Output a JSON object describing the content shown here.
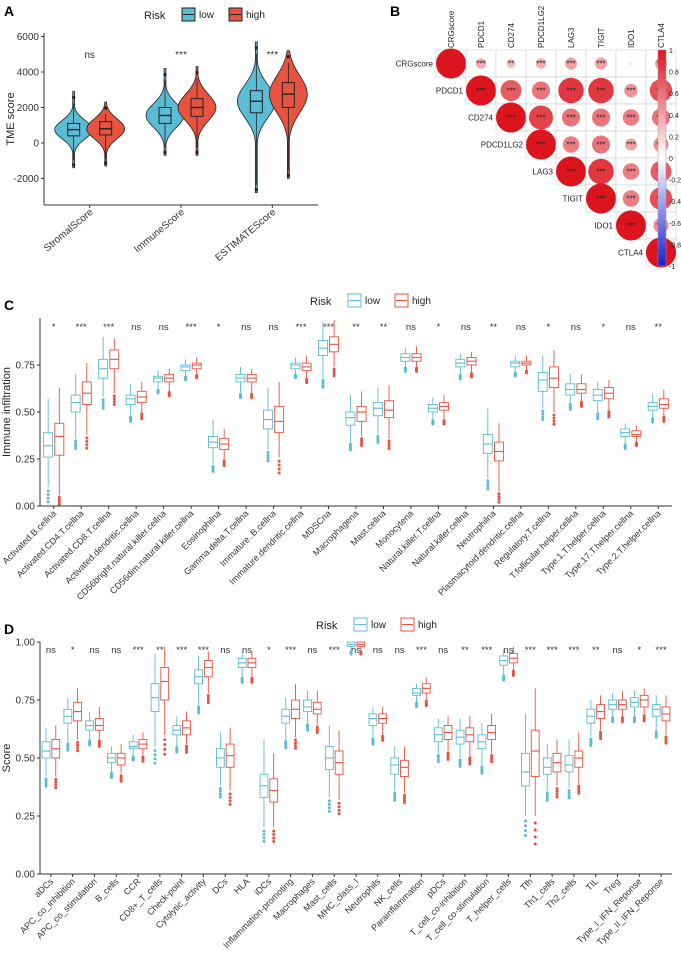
{
  "colors": {
    "low": "#5bbcd6",
    "high": "#e8533f",
    "lowDark": "#2a9fc0",
    "highDark": "#d23f2b",
    "axis": "#333333",
    "grid": "#dddddd"
  },
  "chart_data": [
    {
      "id": "A",
      "type": "violin",
      "panel_label": "A",
      "legend": {
        "title": "Risk",
        "entries": [
          "low",
          "high"
        ]
      },
      "ylabel": "TME score",
      "ylim": [
        -3500,
        6200
      ],
      "yticks": [
        -2000,
        0,
        2000,
        4000,
        6000
      ],
      "categories": [
        "StromalScore",
        "ImmuneScore",
        "ESTIMATEScore"
      ],
      "significance": [
        "ns",
        "***",
        "***"
      ],
      "series": [
        {
          "name": "low",
          "median": [
            750,
            1550,
            2350
          ],
          "q1": [
            400,
            1100,
            1700
          ],
          "q3": [
            1100,
            2000,
            2950
          ],
          "min": [
            -1400,
            -700,
            -2800
          ],
          "max": [
            2900,
            4200,
            5700
          ]
        },
        {
          "name": "high",
          "median": [
            800,
            2000,
            2750
          ],
          "q1": [
            450,
            1500,
            2000
          ],
          "q3": [
            1200,
            2500,
            3400
          ],
          "min": [
            -1300,
            -700,
            -2000
          ],
          "max": [
            2300,
            4300,
            5200
          ]
        }
      ]
    },
    {
      "id": "B",
      "type": "correlation-matrix",
      "panel_label": "B",
      "variables": [
        "CRGscore",
        "PDCD1",
        "CD274",
        "PDCD1LG2",
        "LAG3",
        "TIGIT",
        "IDO1",
        "CTLA4"
      ],
      "colorbar_ticks": [
        "1",
        "0.8",
        "0.6",
        "0.4",
        "0.2",
        "0",
        "-0.2",
        "-0.4",
        "-0.6",
        "-0.8",
        "-1"
      ],
      "cells": [
        [
          "",
          "***",
          "**",
          "***",
          "***",
          "***",
          "",
          "***"
        ],
        [
          "",
          "***",
          "***",
          "***",
          "***",
          "***",
          "***",
          "***"
        ],
        [
          "",
          "",
          "***",
          "***",
          "***",
          "***",
          "***",
          "***"
        ],
        [
          "",
          "",
          "",
          "***",
          "***",
          "***",
          "***",
          "***"
        ],
        [
          "",
          "",
          "",
          "",
          "***",
          "***",
          "***",
          "***"
        ],
        [
          "",
          "",
          "",
          "",
          "",
          "***",
          "***",
          "***"
        ],
        [
          "",
          "",
          "",
          "",
          "",
          "",
          "***",
          "***"
        ],
        [
          "",
          "",
          "",
          "",
          "",
          "",
          "",
          "***"
        ]
      ],
      "values": [
        [
          1,
          0.35,
          0.3,
          0.35,
          0.4,
          0.4,
          0.1,
          0.4
        ],
        [
          0,
          1,
          0.7,
          0.6,
          0.85,
          0.85,
          0.45,
          0.75
        ],
        [
          0,
          0,
          1,
          0.8,
          0.6,
          0.6,
          0.55,
          0.6
        ],
        [
          0,
          0,
          0,
          1,
          0.55,
          0.6,
          0.4,
          0.5
        ],
        [
          0,
          0,
          0,
          0,
          1,
          0.85,
          0.55,
          0.7
        ],
        [
          0,
          0,
          0,
          0,
          0,
          1,
          0.55,
          0.75
        ],
        [
          0,
          0,
          0,
          0,
          0,
          0,
          1,
          0.5
        ],
        [
          0,
          0,
          0,
          0,
          0,
          0,
          0,
          1
        ]
      ]
    },
    {
      "id": "C",
      "type": "boxplot",
      "panel_label": "C",
      "legend": {
        "title": "Risk",
        "entries": [
          "low",
          "high"
        ]
      },
      "ylabel": "Immune infiltration",
      "ylim": [
        0,
        1.0
      ],
      "yticks": [
        0.0,
        0.25,
        0.5,
        0.75
      ],
      "ytick_labels": [
        "0.00",
        "0.25",
        "0.50",
        "0.75"
      ],
      "categories": [
        "Activated.B.cellna",
        "Activated.CD4.T.cellna",
        "Activated.CD8.T.cellna",
        "Activated.dendritic.cellna",
        "CD56bright.natural.killer.cellna",
        "CD56dim.natural.killer.cellna",
        "Eosinophilna",
        "Gamma.delta.T.cellna",
        "Immature..B.cellna",
        "Immature.dendritic.cellna",
        "MDSCna",
        "Macrophagena",
        "Mast.cellna",
        "Monocytena",
        "Natural.killer.T.cellna",
        "Natural.killer.cellna",
        "Neutrophilna",
        "Plasmacytoid.dendritic.cellna",
        "Regulatory.T.cellna",
        "T.follicular.helper.cellna",
        "Type.1.T.helper.cellna",
        "Type.17.T.helper.cellna",
        "Type.2.T.helper.cellna"
      ],
      "significance": [
        "*",
        "***",
        "***",
        "ns",
        "ns",
        "***",
        "*",
        "ns",
        "ns",
        "***",
        "***",
        "**",
        "**",
        "ns",
        "*",
        "ns",
        "**",
        "ns",
        "*",
        "ns",
        "*",
        "ns",
        "**"
      ],
      "series": [
        {
          "name": "low",
          "median": [
            0.32,
            0.55,
            0.73,
            0.57,
            0.68,
            0.74,
            0.34,
            0.68,
            0.46,
            0.75,
            0.84,
            0.47,
            0.52,
            0.79,
            0.52,
            0.76,
            0.33,
            0.76,
            0.67,
            0.62,
            0.59,
            0.39,
            0.53
          ],
          "q1": [
            0.26,
            0.5,
            0.68,
            0.54,
            0.66,
            0.72,
            0.31,
            0.66,
            0.41,
            0.73,
            0.8,
            0.43,
            0.48,
            0.77,
            0.5,
            0.74,
            0.28,
            0.74,
            0.61,
            0.59,
            0.56,
            0.37,
            0.51
          ],
          "q3": [
            0.39,
            0.59,
            0.78,
            0.59,
            0.69,
            0.75,
            0.37,
            0.7,
            0.51,
            0.76,
            0.88,
            0.5,
            0.55,
            0.81,
            0.54,
            0.78,
            0.38,
            0.77,
            0.71,
            0.65,
            0.62,
            0.41,
            0.55
          ],
          "min": [
            0.1,
            0.36,
            0.58,
            0.48,
            0.62,
            0.69,
            0.22,
            0.6,
            0.3,
            0.7,
            0.68,
            0.34,
            0.38,
            0.74,
            0.46,
            0.7,
            0.15,
            0.71,
            0.52,
            0.55,
            0.5,
            0.33,
            0.47
          ],
          "max": [
            0.57,
            0.7,
            0.9,
            0.65,
            0.72,
            0.78,
            0.46,
            0.74,
            0.63,
            0.79,
            0.98,
            0.59,
            0.63,
            0.84,
            0.58,
            0.81,
            0.52,
            0.8,
            0.8,
            0.7,
            0.66,
            0.44,
            0.6
          ]
        },
        {
          "name": "high",
          "median": [
            0.37,
            0.6,
            0.78,
            0.58,
            0.68,
            0.75,
            0.33,
            0.68,
            0.45,
            0.74,
            0.86,
            0.5,
            0.51,
            0.79,
            0.53,
            0.77,
            0.29,
            0.76,
            0.68,
            0.62,
            0.6,
            0.38,
            0.54
          ],
          "q1": [
            0.27,
            0.54,
            0.73,
            0.55,
            0.66,
            0.73,
            0.3,
            0.66,
            0.39,
            0.72,
            0.82,
            0.45,
            0.47,
            0.77,
            0.51,
            0.75,
            0.24,
            0.75,
            0.63,
            0.6,
            0.57,
            0.37,
            0.52
          ],
          "q3": [
            0.44,
            0.66,
            0.83,
            0.61,
            0.7,
            0.76,
            0.36,
            0.7,
            0.53,
            0.76,
            0.9,
            0.53,
            0.56,
            0.81,
            0.55,
            0.79,
            0.34,
            0.77,
            0.74,
            0.65,
            0.63,
            0.4,
            0.57
          ],
          "min": [
            0.06,
            0.38,
            0.6,
            0.5,
            0.61,
            0.7,
            0.25,
            0.6,
            0.26,
            0.68,
            0.74,
            0.37,
            0.36,
            0.74,
            0.46,
            0.71,
            0.08,
            0.72,
            0.5,
            0.56,
            0.51,
            0.34,
            0.48
          ],
          "max": [
            0.63,
            0.76,
            0.89,
            0.66,
            0.73,
            0.79,
            0.41,
            0.73,
            0.66,
            0.8,
            0.99,
            0.61,
            0.64,
            0.85,
            0.59,
            0.82,
            0.44,
            0.8,
            0.83,
            0.7,
            0.67,
            0.43,
            0.62
          ]
        }
      ]
    },
    {
      "id": "D",
      "type": "boxplot",
      "panel_label": "D",
      "legend": {
        "title": "Risk",
        "entries": [
          "low",
          "high"
        ]
      },
      "ylabel": "Score",
      "ylim": [
        0,
        1.0
      ],
      "yticks": [
        0.0,
        0.25,
        0.5,
        0.75,
        1.0
      ],
      "ytick_labels": [
        "0.00",
        "0.25",
        "0.50",
        "0.75",
        "1.00"
      ],
      "categories": [
        "aDCs",
        "APC_co_inhibition",
        "APC_co_stimulation",
        "B_cells",
        "CCR",
        "CD8+_T_cells",
        "Check-point",
        "Cytolytic_activity",
        "DCs",
        "HLA",
        "iDCs",
        "Inflammation-promoting",
        "Macrophages",
        "Mast_cells",
        "MHC_class_I",
        "Neutrophils",
        "NK_cells",
        "Parainflammation",
        "pDCs",
        "T_cell_co-inhibition",
        "T_cell_co-stimulation",
        "T_helper_cells",
        "Tfh",
        "Th1_cells",
        "Th2_cells",
        "TIL",
        "Treg",
        "Type_I_IFN_Reponse",
        "Type_II_IFN_Reponse"
      ],
      "significance": [
        "ns",
        "*",
        "ns",
        "ns",
        "***",
        "**",
        "***",
        "***",
        "ns",
        "ns",
        "*",
        "***",
        "ns",
        "***",
        "ns",
        "ns",
        "ns",
        "***",
        "ns",
        "**",
        "***",
        "ns",
        "***",
        "***",
        "***",
        "**",
        "ns",
        "*",
        "***"
      ],
      "series": [
        {
          "name": "low",
          "median": [
            0.53,
            0.68,
            0.64,
            0.5,
            0.55,
            0.76,
            0.62,
            0.85,
            0.5,
            0.91,
            0.38,
            0.68,
            0.72,
            0.5,
            0.99,
            0.67,
            0.47,
            0.78,
            0.6,
            0.59,
            0.57,
            0.92,
            0.44,
            0.46,
            0.47,
            0.68,
            0.73,
            0.74,
            0.71
          ],
          "q1": [
            0.5,
            0.65,
            0.62,
            0.48,
            0.54,
            0.7,
            0.6,
            0.82,
            0.46,
            0.89,
            0.33,
            0.65,
            0.7,
            0.45,
            0.98,
            0.64,
            0.43,
            0.77,
            0.57,
            0.56,
            0.54,
            0.9,
            0.38,
            0.43,
            0.44,
            0.65,
            0.71,
            0.72,
            0.68
          ],
          "q3": [
            0.57,
            0.71,
            0.66,
            0.52,
            0.57,
            0.82,
            0.64,
            0.88,
            0.54,
            0.93,
            0.43,
            0.71,
            0.75,
            0.55,
            1.0,
            0.69,
            0.5,
            0.8,
            0.63,
            0.62,
            0.6,
            0.94,
            0.52,
            0.5,
            0.51,
            0.71,
            0.75,
            0.76,
            0.73
          ],
          "min": [
            0.42,
            0.57,
            0.58,
            0.44,
            0.51,
            0.55,
            0.55,
            0.73,
            0.38,
            0.85,
            0.2,
            0.58,
            0.65,
            0.33,
            0.96,
            0.59,
            0.36,
            0.74,
            0.52,
            0.5,
            0.47,
            0.86,
            0.25,
            0.36,
            0.37,
            0.59,
            0.68,
            0.68,
            0.62
          ],
          "max": [
            0.63,
            0.76,
            0.7,
            0.55,
            0.6,
            0.95,
            0.68,
            0.94,
            0.61,
            0.96,
            0.58,
            0.76,
            0.79,
            0.64,
            1.0,
            0.72,
            0.55,
            0.82,
            0.67,
            0.67,
            0.65,
            0.97,
            0.69,
            0.56,
            0.58,
            0.75,
            0.78,
            0.79,
            0.77
          ]
        },
        {
          "name": "high",
          "median": [
            0.54,
            0.7,
            0.64,
            0.5,
            0.56,
            0.83,
            0.63,
            0.89,
            0.51,
            0.91,
            0.36,
            0.71,
            0.71,
            0.48,
            0.99,
            0.67,
            0.46,
            0.8,
            0.61,
            0.6,
            0.61,
            0.93,
            0.53,
            0.48,
            0.5,
            0.7,
            0.73,
            0.75,
            0.69
          ],
          "q1": [
            0.5,
            0.66,
            0.62,
            0.47,
            0.54,
            0.75,
            0.6,
            0.85,
            0.46,
            0.89,
            0.31,
            0.67,
            0.69,
            0.43,
            0.98,
            0.65,
            0.42,
            0.78,
            0.58,
            0.57,
            0.58,
            0.91,
            0.42,
            0.44,
            0.46,
            0.67,
            0.71,
            0.72,
            0.66
          ],
          "q3": [
            0.58,
            0.74,
            0.67,
            0.52,
            0.58,
            0.89,
            0.66,
            0.92,
            0.56,
            0.93,
            0.41,
            0.75,
            0.74,
            0.53,
            1.0,
            0.69,
            0.49,
            0.82,
            0.64,
            0.63,
            0.64,
            0.95,
            0.62,
            0.52,
            0.53,
            0.73,
            0.75,
            0.77,
            0.72
          ],
          "min": [
            0.42,
            0.58,
            0.58,
            0.43,
            0.51,
            0.6,
            0.56,
            0.78,
            0.36,
            0.85,
            0.2,
            0.59,
            0.64,
            0.32,
            0.96,
            0.6,
            0.35,
            0.75,
            0.53,
            0.51,
            0.52,
            0.88,
            0.25,
            0.38,
            0.39,
            0.62,
            0.68,
            0.69,
            0.6
          ],
          "max": [
            0.64,
            0.8,
            0.72,
            0.56,
            0.61,
            0.98,
            0.7,
            0.96,
            0.63,
            0.96,
            0.52,
            0.82,
            0.79,
            0.62,
            1.0,
            0.72,
            0.55,
            0.85,
            0.68,
            0.68,
            0.69,
            0.98,
            0.8,
            0.58,
            0.61,
            0.77,
            0.79,
            0.8,
            0.77
          ]
        }
      ]
    }
  ]
}
